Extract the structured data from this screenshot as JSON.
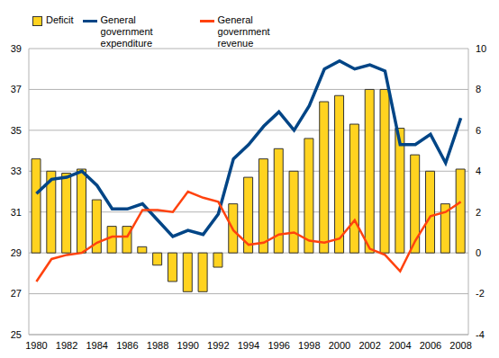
{
  "chart_data": {
    "type": "bar",
    "categories": [
      "1980",
      null,
      "1982",
      null,
      "1984",
      null,
      "1986",
      null,
      "1988",
      null,
      "1990",
      null,
      "1992",
      null,
      "1994",
      null,
      "1996",
      null,
      "1998",
      null,
      "2000",
      null,
      "2002",
      null,
      "2004",
      null,
      "2006",
      null,
      "2008"
    ],
    "series": [
      {
        "name": "Deficit",
        "type": "bar",
        "color": "#ffd320",
        "axis": "y2",
        "values": [
          4.6,
          4.0,
          3.9,
          4.1,
          2.6,
          1.3,
          1.3,
          0.3,
          -0.6,
          -1.4,
          -1.9,
          -1.9,
          -0.7,
          2.4,
          3.7,
          4.6,
          5.1,
          4.0,
          5.6,
          7.4,
          7.7,
          6.3,
          8.0,
          8.0,
          6.1,
          4.8,
          4.0,
          2.4,
          4.1
        ]
      },
      {
        "name": "General government expenditure",
        "type": "line",
        "color": "#004586",
        "values": [
          31.9,
          32.6,
          32.7,
          33.0,
          32.3,
          31.15,
          31.15,
          31.4,
          30.6,
          29.8,
          30.1,
          29.9,
          30.9,
          33.6,
          34.3,
          35.2,
          35.9,
          35.0,
          36.2,
          38.0,
          38.4,
          38.0,
          38.2,
          37.9,
          34.3,
          34.3,
          34.8,
          33.4,
          35.6
        ]
      },
      {
        "name": "General government revenue",
        "type": "line",
        "color": "#ff420e",
        "values": [
          27.6,
          28.7,
          28.9,
          29.0,
          29.5,
          29.8,
          29.8,
          31.1,
          31.1,
          31.0,
          32.0,
          31.7,
          31.5,
          30.1,
          29.4,
          29.5,
          29.9,
          30.0,
          29.6,
          29.5,
          29.7,
          30.6,
          29.2,
          28.9,
          28.1,
          29.6,
          30.8,
          31.0,
          31.5
        ]
      }
    ],
    "ylim": [
      25,
      39
    ],
    "yticks": [
      25,
      27,
      29,
      31,
      33,
      35,
      37,
      39
    ],
    "y2lim": [
      -4,
      10
    ],
    "y2ticks": [
      -4,
      -2,
      0,
      2,
      4,
      6,
      8,
      10
    ],
    "grid": true,
    "legend": "top-left"
  }
}
